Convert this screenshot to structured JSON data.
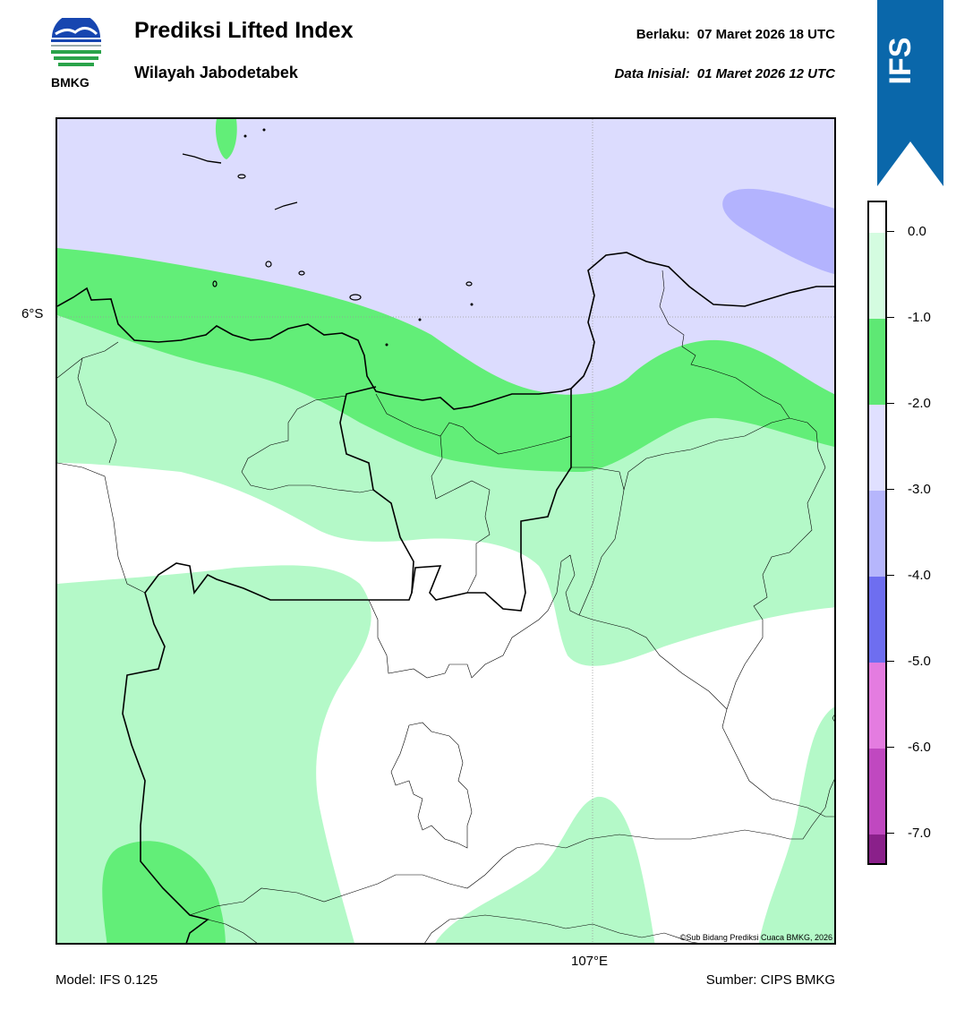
{
  "header": {
    "title": "Prediksi Lifted Index",
    "subtitle": "Wilayah Jabodetabek",
    "valid_label": "Berlaku:",
    "valid_value": "07 Maret 2026 18 UTC",
    "init_label": "Data Inisial:",
    "init_value": "01 Maret 2026 12 UTC"
  },
  "logo": {
    "text": "BMKG",
    "icon": "bmkg-logo-icon"
  },
  "ribbon": {
    "text": "IFS",
    "color": "#0a67aa"
  },
  "map": {
    "lat_label": "6°S",
    "lon_label": "107°E",
    "credit": "©Sub Bidang Prediksi Cuaca BMKG, 2026",
    "fill_colors": {
      "band_0_to_-1": "#b4f9c8",
      "band_-1_to_-2": "#62ee78",
      "band_-2_to_-3": "#dcdcfe",
      "band_-3_to_-4": "#b3b3fe",
      "above_0": "#ffffff"
    }
  },
  "colorbar": {
    "ticks": [
      "0.0",
      "-1.0",
      "-2.0",
      "-3.0",
      "-4.0",
      "-5.0",
      "-6.0",
      "-7.0"
    ],
    "colors": [
      "#d4fce0",
      "#5ee874",
      "#e0e0ff",
      "#b6b6fc",
      "#6e6ef0",
      "#e47ce0",
      "#c048c0",
      "#8a208a"
    ]
  },
  "footer": {
    "model": "Model: IFS 0.125",
    "source": "Sumber: CIPS BMKG"
  }
}
